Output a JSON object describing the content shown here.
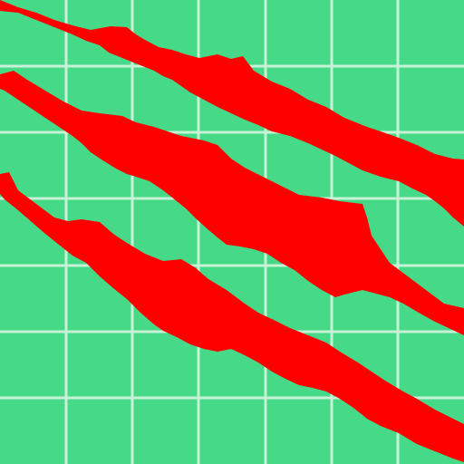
{
  "colors": {
    "background": "#45d988",
    "grid": "#c8f2d6",
    "claw": "#ff0000"
  },
  "icon": "claw-scratch-marks-icon",
  "grid": {
    "columns": 7,
    "rows": 7
  },
  "marks": [
    {
      "name": "claw-mark-top"
    },
    {
      "name": "claw-mark-middle"
    },
    {
      "name": "claw-mark-bottom"
    }
  ]
}
